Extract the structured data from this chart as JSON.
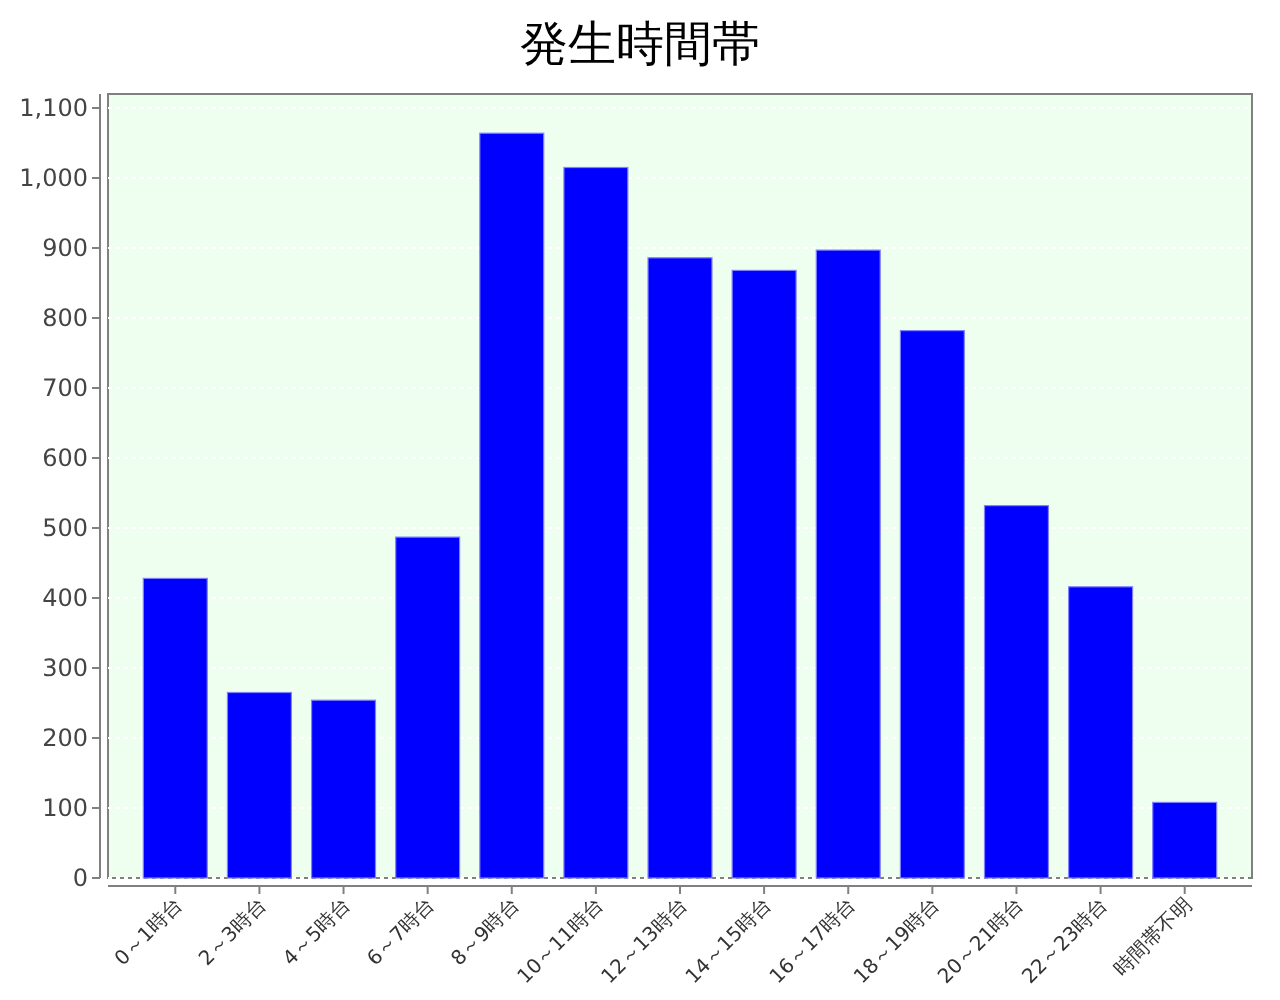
{
  "chart_data": {
    "type": "bar",
    "title": "発生時間帯",
    "categories": [
      "0～1時台",
      "2～3時台",
      "4～5時台",
      "6～7時台",
      "8～9時台",
      "10～11時台",
      "12～13時台",
      "14～15時台",
      "16～17時台",
      "18～19時台",
      "20～21時台",
      "22～23時台",
      "時間帯不明"
    ],
    "values": [
      428,
      265,
      254,
      487,
      1064,
      1015,
      886,
      868,
      897,
      782,
      532,
      416,
      108
    ],
    "color": "#0000ff",
    "ylim": [
      0,
      1120
    ],
    "yticks": [
      0,
      {
        "value": 100,
        "label": "100"
      },
      {
        "value": 200,
        "label": "200"
      },
      {
        "value": 300,
        "label": "300"
      },
      {
        "value": 400,
        "label": "400"
      },
      {
        "value": 500,
        "label": "500"
      },
      {
        "value": 600,
        "label": "600"
      },
      {
        "value": 700,
        "label": "700"
      },
      {
        "value": 800,
        "label": "800"
      },
      {
        "value": 900,
        "label": "900"
      },
      {
        "value": 1000,
        "label": "1,000"
      },
      {
        "value": 1100,
        "label": "1,100"
      }
    ],
    "grid": "y"
  }
}
